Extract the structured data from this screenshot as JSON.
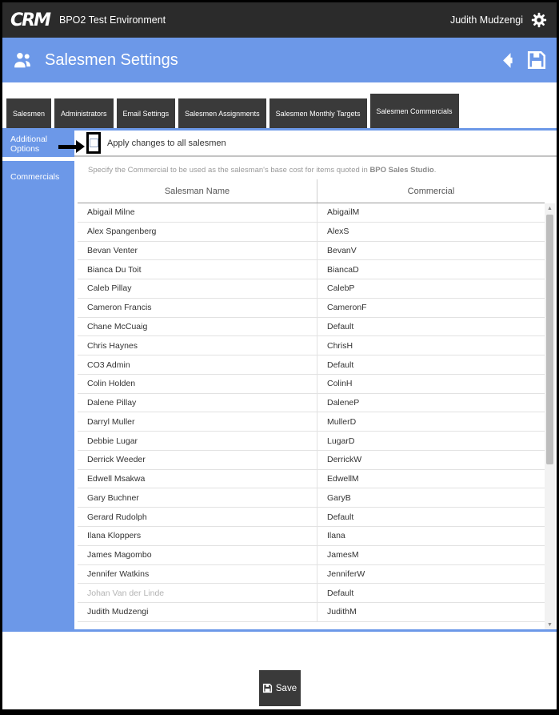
{
  "header": {
    "brand": "CRM",
    "app_title": "BPO2 Test Environment",
    "user_name": "Judith Mudzengi"
  },
  "page": {
    "title": "Salesmen Settings"
  },
  "tabs": [
    {
      "label": "Salesmen",
      "active": false
    },
    {
      "label": "Administrators",
      "active": false
    },
    {
      "label": "Email Settings",
      "active": false
    },
    {
      "label": "Salesmen Assignments",
      "active": false
    },
    {
      "label": "Salesmen Monthly Targets",
      "active": false
    },
    {
      "label": "Salesmen Commercials",
      "active": true
    }
  ],
  "sidebar": {
    "items": [
      {
        "label": "Additional Options"
      },
      {
        "label": "Commercials"
      }
    ]
  },
  "options_row": {
    "checkbox_label": "Apply changes to all salesmen",
    "checkbox_checked": false
  },
  "description": {
    "text": "Specify the Commercial to be used as the salesman's base cost for items quoted in ",
    "bold_text": "BPO Sales Studio",
    "suffix": "."
  },
  "table": {
    "columns": [
      "Salesman Name",
      "Commercial"
    ],
    "rows": [
      {
        "name": "Abigail Milne",
        "commercial": "AbigailM",
        "muted": false
      },
      {
        "name": "Alex Spangenberg",
        "commercial": "AlexS",
        "muted": false
      },
      {
        "name": "Bevan Venter",
        "commercial": "BevanV",
        "muted": false
      },
      {
        "name": "Bianca Du Toit",
        "commercial": "BiancaD",
        "muted": false
      },
      {
        "name": "Caleb Pillay",
        "commercial": "CalebP",
        "muted": false
      },
      {
        "name": "Cameron Francis",
        "commercial": "CameronF",
        "muted": false
      },
      {
        "name": "Chane McCuaig",
        "commercial": "Default",
        "muted": false
      },
      {
        "name": "Chris Haynes",
        "commercial": "ChrisH",
        "muted": false
      },
      {
        "name": "CO3 Admin",
        "commercial": "Default",
        "muted": false
      },
      {
        "name": "Colin Holden",
        "commercial": "ColinH",
        "muted": false
      },
      {
        "name": "Dalene Pillay",
        "commercial": "DaleneP",
        "muted": false
      },
      {
        "name": "Darryl Muller",
        "commercial": "MullerD",
        "muted": false
      },
      {
        "name": "Debbie Lugar",
        "commercial": "LugarD",
        "muted": false
      },
      {
        "name": "Derrick Weeder",
        "commercial": "DerrickW",
        "muted": false
      },
      {
        "name": "Edwell Msakwa",
        "commercial": "EdwellM",
        "muted": false
      },
      {
        "name": "Gary Buchner",
        "commercial": "GaryB",
        "muted": false
      },
      {
        "name": "Gerard Rudolph",
        "commercial": "Default",
        "muted": false
      },
      {
        "name": "Ilana Kloppers",
        "commercial": "Ilana",
        "muted": false
      },
      {
        "name": "James Magombo",
        "commercial": "JamesM",
        "muted": false
      },
      {
        "name": "Jennifer Watkins",
        "commercial": "JenniferW",
        "muted": false
      },
      {
        "name": "Johan Van der Linde",
        "commercial": "Default",
        "muted": true
      },
      {
        "name": "Judith Mudzengi",
        "commercial": "JudithM",
        "muted": false
      }
    ]
  },
  "scrollbar": {
    "up_glyph": "▲",
    "down_glyph": "▼"
  },
  "footer": {
    "save_label": "Save"
  },
  "colors": {
    "accent_blue": "#6c98e8",
    "topbar_dark": "#2b2b2b",
    "tab_dark": "#3a3a3a"
  }
}
